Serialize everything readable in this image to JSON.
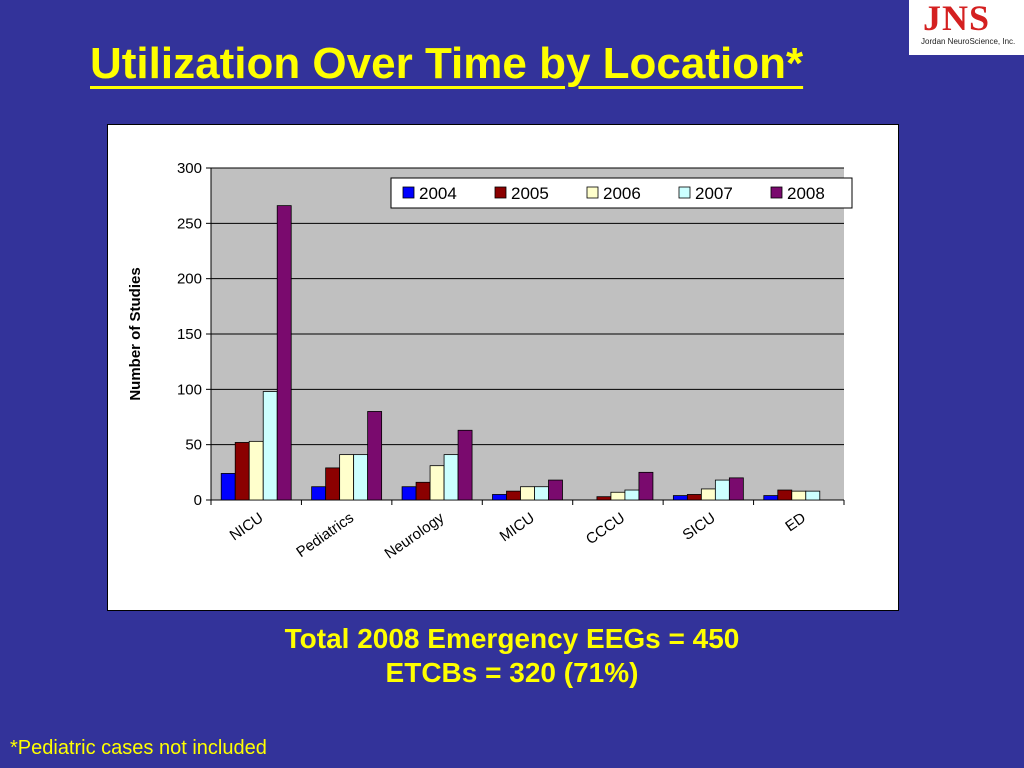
{
  "slide": {
    "title": "Utilization Over Time by Location*",
    "summary_line1": "Total 2008 Emergency EEGs = 450",
    "summary_line2": "ETCBs = 320 (71%)",
    "footnote": "*Pediatric cases not included",
    "background_color": "#33339a",
    "text_color": "#ffff00"
  },
  "logo": {
    "mark": "JNS",
    "company": "Jordan NeuroScience, Inc.",
    "color": "#d42020"
  },
  "chart_data": {
    "type": "bar",
    "title": "",
    "xlabel": "",
    "ylabel": "Number of Studies",
    "ylim": [
      0,
      300
    ],
    "yticks": [
      0,
      50,
      100,
      150,
      200,
      250,
      300
    ],
    "grid": true,
    "legend_position": "top-right",
    "categories": [
      "NICU",
      "Pediatrics",
      "Neurology",
      "MICU",
      "CCCU",
      "SICU",
      "ED"
    ],
    "series": [
      {
        "name": "2004",
        "color": "#0000ff",
        "values": [
          24,
          12,
          12,
          5,
          0,
          4,
          4
        ]
      },
      {
        "name": "2005",
        "color": "#8b0000",
        "values": [
          52,
          29,
          16,
          8,
          3,
          5,
          9
        ]
      },
      {
        "name": "2006",
        "color": "#ffffcc",
        "values": [
          53,
          41,
          31,
          12,
          7,
          10,
          8
        ]
      },
      {
        "name": "2007",
        "color": "#ccffff",
        "values": [
          98,
          41,
          41,
          12,
          9,
          18,
          8
        ]
      },
      {
        "name": "2008",
        "color": "#7a0a6e",
        "values": [
          266,
          80,
          63,
          18,
          25,
          20,
          0
        ]
      }
    ]
  }
}
